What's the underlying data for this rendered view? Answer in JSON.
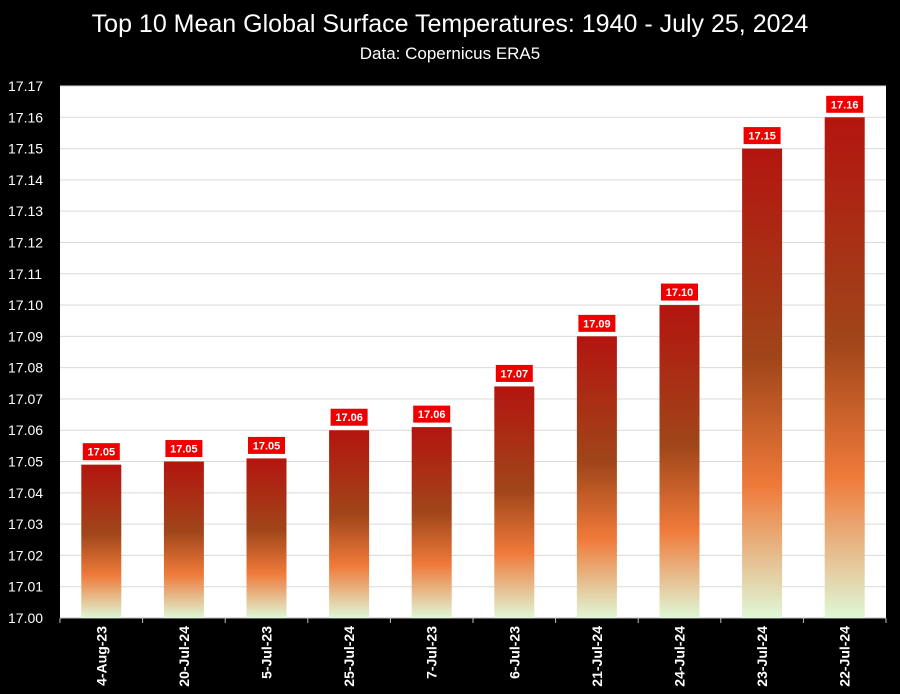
{
  "chart_data": {
    "type": "bar",
    "title": "Top 10 Mean Global Surface Temperatures: 1940 - July 25, 2024",
    "subtitle": "Data: Copernicus ERA5",
    "xlabel": "",
    "ylabel": "",
    "categories": [
      "4-Aug-23",
      "20-Jul-24",
      "5-Jul-23",
      "25-Jul-24",
      "7-Jul-23",
      "6-Jul-23",
      "21-Jul-24",
      "24-Jul-24",
      "23-Jul-24",
      "22-Jul-24"
    ],
    "values": [
      17.049,
      17.05,
      17.051,
      17.06,
      17.061,
      17.074,
      17.09,
      17.1,
      17.15,
      17.16
    ],
    "data_labels": [
      "17.05",
      "17.05",
      "17.05",
      "17.06",
      "17.06",
      "17.07",
      "17.09",
      "17.10",
      "17.15",
      "17.16"
    ],
    "ylim": [
      17.0,
      17.17
    ],
    "y_ticks": [
      "17.00",
      "17.01",
      "17.02",
      "17.03",
      "17.04",
      "17.05",
      "17.06",
      "17.07",
      "17.08",
      "17.09",
      "17.10",
      "17.11",
      "17.12",
      "17.13",
      "17.14",
      "17.15",
      "17.16",
      "17.17"
    ],
    "grid": true,
    "legend": "none",
    "colors": {
      "background": "#000000",
      "plot_area": "#ffffff",
      "grid": "#d9d9d9",
      "bar_top": "#b3150f",
      "bar_mid": "#a0461a",
      "bar_orange": "#ef7a3a",
      "bar_bottom": "#dff7d6",
      "label_box": "#ee0000"
    }
  }
}
